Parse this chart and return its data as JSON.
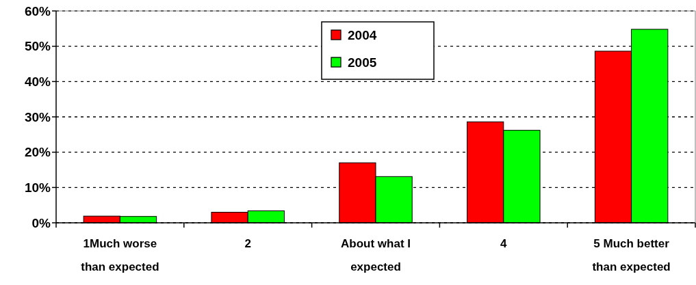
{
  "chart_data": {
    "type": "bar",
    "categories": [
      "1Much worse than expected",
      "2",
      "About what I expected",
      "4",
      "5 Much better than expected"
    ],
    "series": [
      {
        "name": "2004",
        "color": "#ff0000",
        "values": [
          1.9,
          3.0,
          17.0,
          28.6,
          48.6
        ]
      },
      {
        "name": "2005",
        "color": "#00ff00",
        "values": [
          1.8,
          3.4,
          13.1,
          26.2,
          54.8
        ]
      }
    ],
    "ylim": [
      0,
      60
    ],
    "yticks": [
      {
        "value": 0,
        "label": "0%"
      },
      {
        "value": 10,
        "label": "10%"
      },
      {
        "value": 20,
        "label": "20%"
      },
      {
        "value": 30,
        "label": "30%"
      },
      {
        "value": 40,
        "label": "40%"
      },
      {
        "value": 50,
        "label": "50%"
      },
      {
        "value": 60,
        "label": "60%"
      }
    ],
    "grid": "y",
    "legend": "top"
  }
}
